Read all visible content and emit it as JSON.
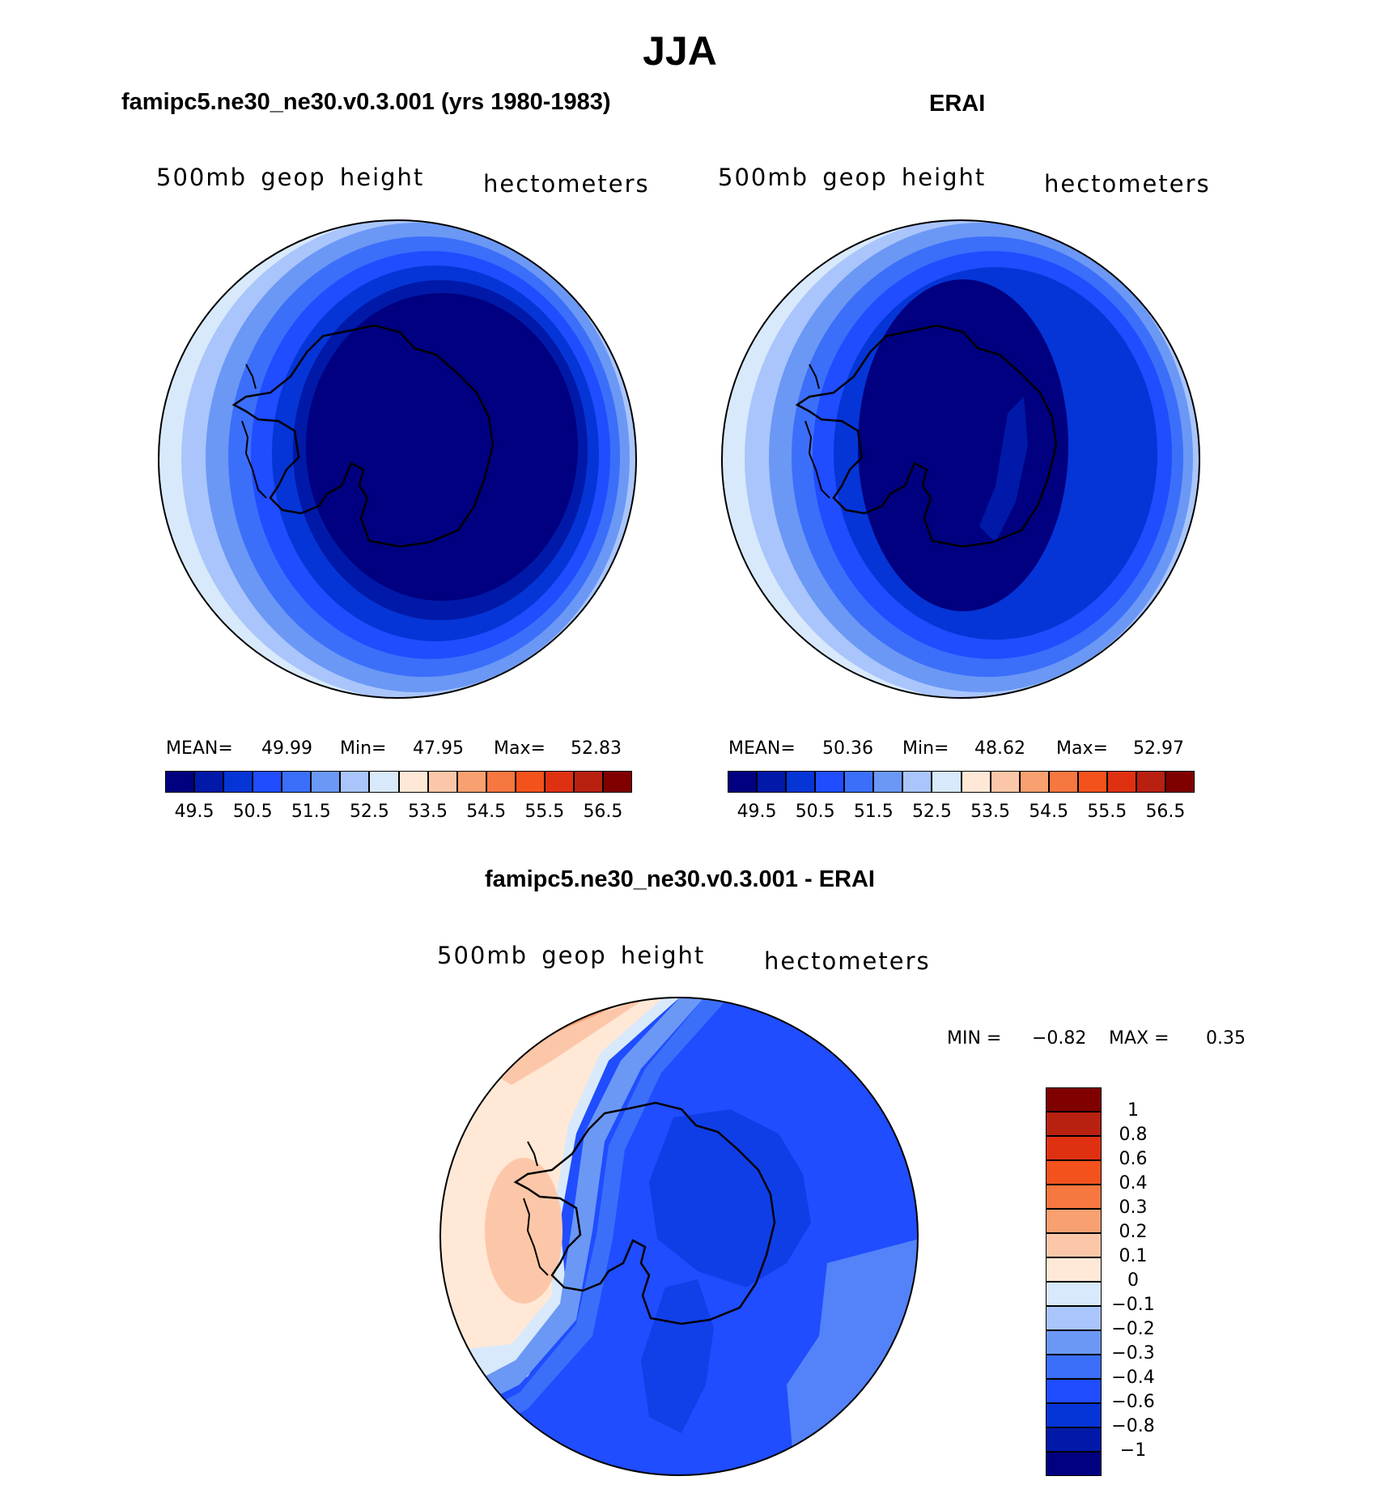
{
  "page_title": "JJA",
  "panels": [
    {
      "id": "model",
      "header": "famipc5.ne30_ne30.v0.3.001 (yrs 1980-1983)",
      "field_label": "500mb geop height",
      "units_label": "hectometers",
      "stats": {
        "mean_label": "MEAN=",
        "mean": "49.99",
        "min_label": "Min=",
        "min": "47.95",
        "max_label": "Max=",
        "max": "52.83"
      }
    },
    {
      "id": "obs",
      "header": "ERAI",
      "field_label": "500mb geop height",
      "units_label": "hectometers",
      "stats": {
        "mean_label": "MEAN=",
        "mean": "50.36",
        "min_label": "Min=",
        "min": "48.62",
        "max_label": "Max=",
        "max": "52.97"
      }
    },
    {
      "id": "diff",
      "header": "famipc5.ne30_ne30.v0.3.001 - ERAI",
      "field_label": "500mb geop height",
      "units_label": "hectometers",
      "stats": {
        "min_label": "MIN =",
        "min": "−0.82",
        "max_label": "MAX =",
        "max": "0.35"
      }
    }
  ],
  "colorbar_abs": {
    "colors": [
      "#000080",
      "#0019a8",
      "#0535d6",
      "#1f4dff",
      "#3b6ffa",
      "#6b98f5",
      "#a9c5fb",
      "#d8e9fb",
      "#ffe8d6",
      "#fcc7a8",
      "#f9a070",
      "#f6773f",
      "#f4521d",
      "#df3111",
      "#b82010",
      "#800000"
    ],
    "tick_labels": [
      "49.5",
      "50.5",
      "51.5",
      "52.5",
      "53.5",
      "54.5",
      "55.5",
      "56.5"
    ]
  },
  "colorbar_diff": {
    "colors": [
      "#000080",
      "#0019a8",
      "#0535d6",
      "#1f4dff",
      "#3b6ffa",
      "#6b98f5",
      "#a9c5fb",
      "#d8e9fb",
      "#ffe8d6",
      "#fcc7a8",
      "#f9a070",
      "#f6773f",
      "#f4521d",
      "#df3111",
      "#b82010",
      "#800000"
    ],
    "tick_labels": [
      "1",
      "0.8",
      "0.6",
      "0.4",
      "0.3",
      "0.2",
      "0.1",
      "0",
      "−0.1",
      "−0.2",
      "−0.3",
      "−0.4",
      "−0.6",
      "−0.8",
      "−1"
    ]
  }
}
